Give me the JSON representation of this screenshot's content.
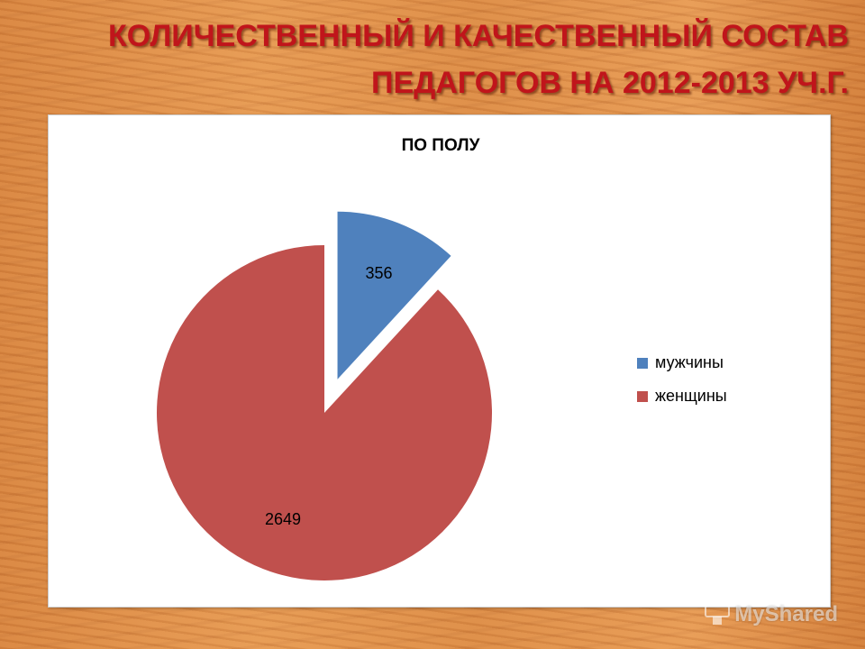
{
  "slide": {
    "title_line1": "КОЛИЧЕСТВЕННЫЙ И КАЧЕСТВЕННЫЙ СОСТАВ",
    "title_line2": "ПЕДАГОГОВ НА 2012-2013 УЧ.Г."
  },
  "watermark": {
    "text": "MyShared",
    "icon": "podium-icon"
  },
  "chart_data": {
    "type": "pie",
    "title": "ПО ПОЛУ",
    "categories": [
      "мужчины",
      "женщины"
    ],
    "values": [
      356,
      2649
    ],
    "colors": [
      "#4f81bd",
      "#c0504d"
    ],
    "exploded": [
      true,
      false
    ],
    "data_labels": true,
    "legend_placement": "right"
  }
}
